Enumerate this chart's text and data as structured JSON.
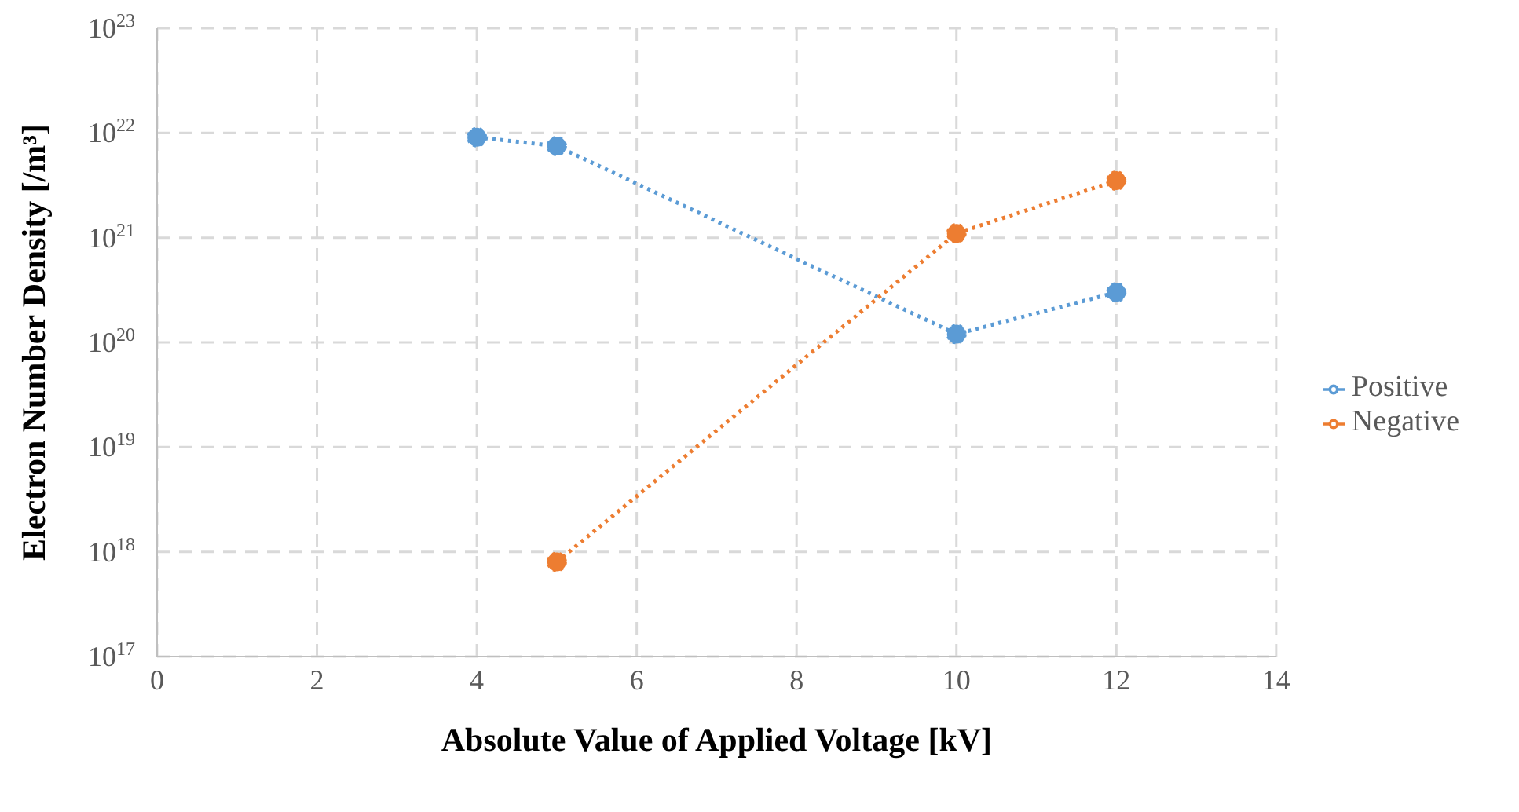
{
  "chart_data": {
    "type": "line",
    "xlabel": "Absolute Value of Applied Voltage [kV]",
    "ylabel": "Electron Number Density [/m³]",
    "x": [
      4,
      5,
      10,
      12
    ],
    "series": [
      {
        "name": "Positive",
        "color": "#5b9bd5",
        "values": [
          9.1e+21,
          7.5e+21,
          1.2e+20,
          3e+20
        ]
      },
      {
        "name": "Negative",
        "color": "#ed7d31",
        "values": [
          null,
          8e+17,
          1.1e+21,
          3.5e+21
        ]
      }
    ],
    "xlim": [
      0,
      14
    ],
    "xticks": [
      0,
      2,
      4,
      6,
      8,
      10,
      12,
      14
    ],
    "ylim": [
      1e+17,
      1e+23
    ],
    "yticks": [
      {
        "value": 1e+17,
        "label": "10$^{17}$"
      },
      {
        "value": 1e+18,
        "label": "10$^{18}$"
      },
      {
        "value": 1e+19,
        "label": "10$^{19}$"
      },
      {
        "value": 1e+20,
        "label": "10$^{20}$"
      },
      {
        "value": 1e+21,
        "label": "10$^{21}$"
      },
      {
        "value": 1e+22,
        "label": "10$^{22}$"
      },
      {
        "value": 1e+23,
        "label": "10$^{23}$"
      }
    ],
    "log": "y",
    "grid": true,
    "legend": "right",
    "marker": "circle",
    "line_style": "dotted"
  }
}
